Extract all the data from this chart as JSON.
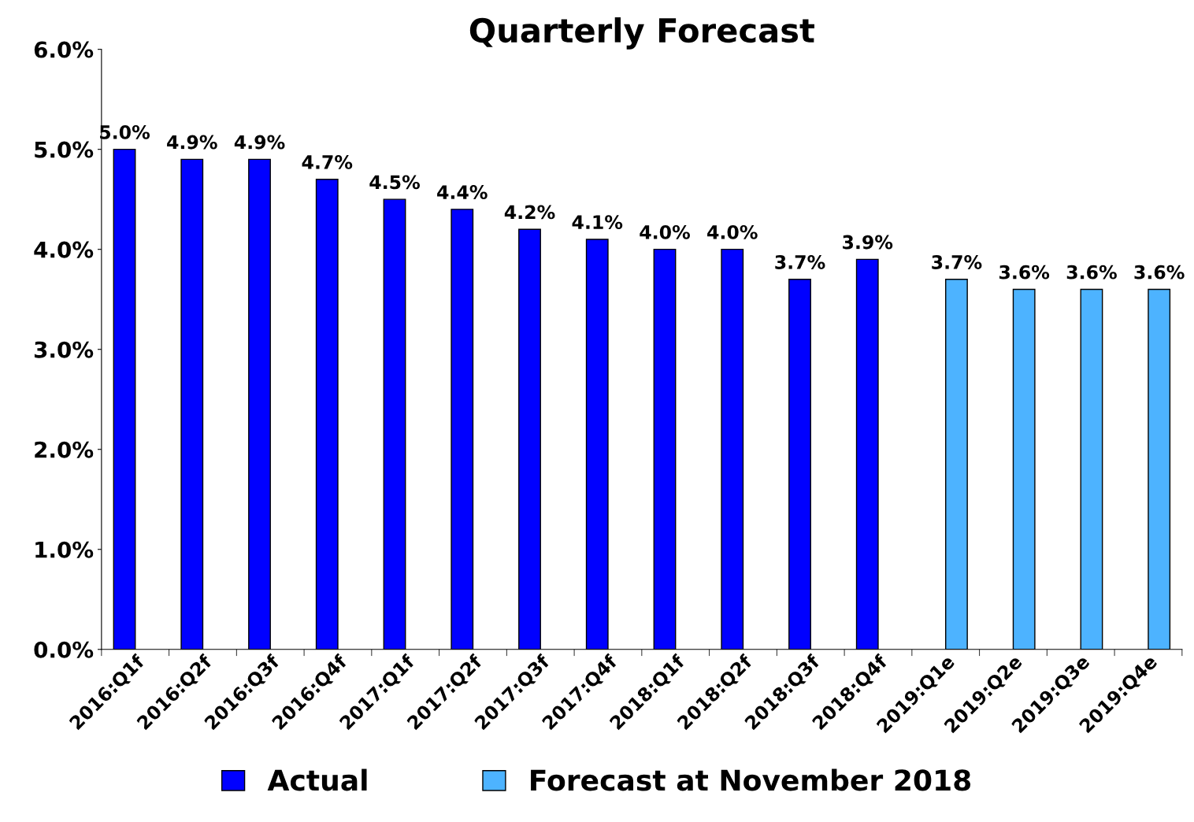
{
  "chart_data": {
    "type": "bar",
    "title": "Quarterly Forecast",
    "categories": [
      "2016:Q1f",
      "2016:Q2f",
      "2016:Q3f",
      "2016:Q4f",
      "2017:Q1f",
      "2017:Q2f",
      "2017:Q3f",
      "2017:Q4f",
      "2018:Q1f",
      "2018:Q2f",
      "2018:Q3f",
      "2018:Q4f",
      "2019:Q1e",
      "2019:Q2e",
      "2019:Q3e",
      "2019:Q4e"
    ],
    "series": [
      {
        "name": "Actual",
        "color": "#0000ff",
        "values": [
          5.0,
          4.9,
          4.9,
          4.7,
          4.5,
          4.4,
          4.2,
          4.1,
          4.0,
          4.0,
          3.7,
          3.9,
          null,
          null,
          null,
          null
        ]
      },
      {
        "name": "Forecast at November 2018",
        "color": "#4db3ff",
        "values": [
          null,
          null,
          null,
          null,
          null,
          null,
          null,
          null,
          null,
          null,
          null,
          null,
          3.7,
          3.6,
          3.6,
          3.6
        ]
      }
    ],
    "value_labels": [
      "5.0%",
      "4.9%",
      "4.9%",
      "4.7%",
      "4.5%",
      "4.4%",
      "4.2%",
      "4.1%",
      "4.0%",
      "4.0%",
      "3.7%",
      "3.9%",
      "3.7%",
      "3.6%",
      "3.6%",
      "3.6%"
    ],
    "ylim": [
      0,
      6
    ],
    "yticks": [
      {
        "value": 0,
        "label": "0.0%"
      },
      {
        "value": 1,
        "label": "1.0%"
      },
      {
        "value": 2,
        "label": "2.0%"
      },
      {
        "value": 3,
        "label": "3.0%"
      },
      {
        "value": 4,
        "label": "4.0%"
      },
      {
        "value": 5,
        "label": "5.0%"
      },
      {
        "value": 6,
        "label": "6.0%"
      }
    ],
    "grid": false,
    "legend": "bottom"
  }
}
